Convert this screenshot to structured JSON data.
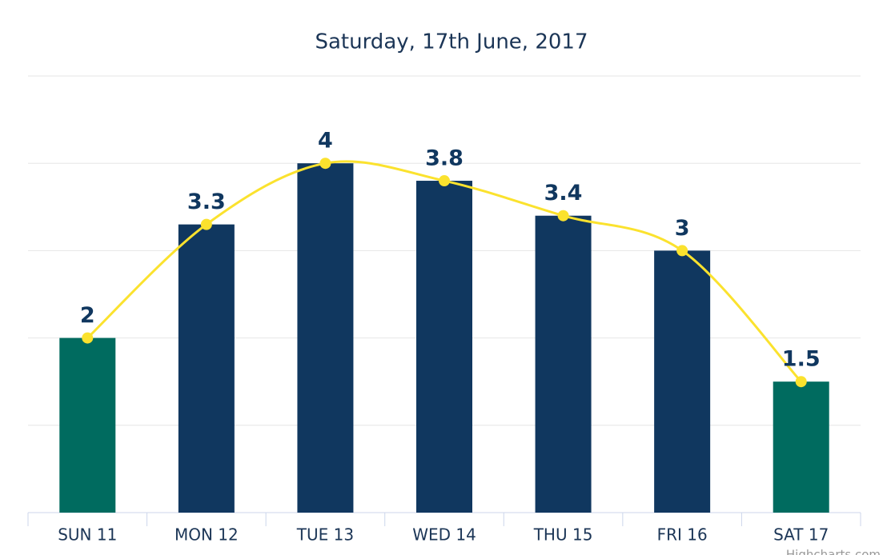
{
  "chart_data": {
    "type": "bar",
    "title": "Saturday, 17th June, 2017",
    "categories": [
      "SUN 11",
      "MON 12",
      "TUE 13",
      "WED 14",
      "THU 15",
      "FRI 16",
      "SAT 17"
    ],
    "series": [
      {
        "type": "bar",
        "values": [
          2,
          3.3,
          4,
          3.8,
          3.4,
          3,
          1.5
        ],
        "colors": [
          "#006b5f",
          "#10375f",
          "#10375f",
          "#10375f",
          "#10375f",
          "#10375f",
          "#006b5f"
        ]
      },
      {
        "type": "spline",
        "color": "#fbe22e",
        "values": [
          2,
          3.3,
          4,
          3.8,
          3.4,
          3,
          1.5
        ]
      }
    ],
    "ylim": [
      0,
      5
    ],
    "yticks": [
      0,
      1,
      2,
      3,
      4,
      5
    ],
    "grid": true,
    "credit": "Highcharts.com"
  }
}
